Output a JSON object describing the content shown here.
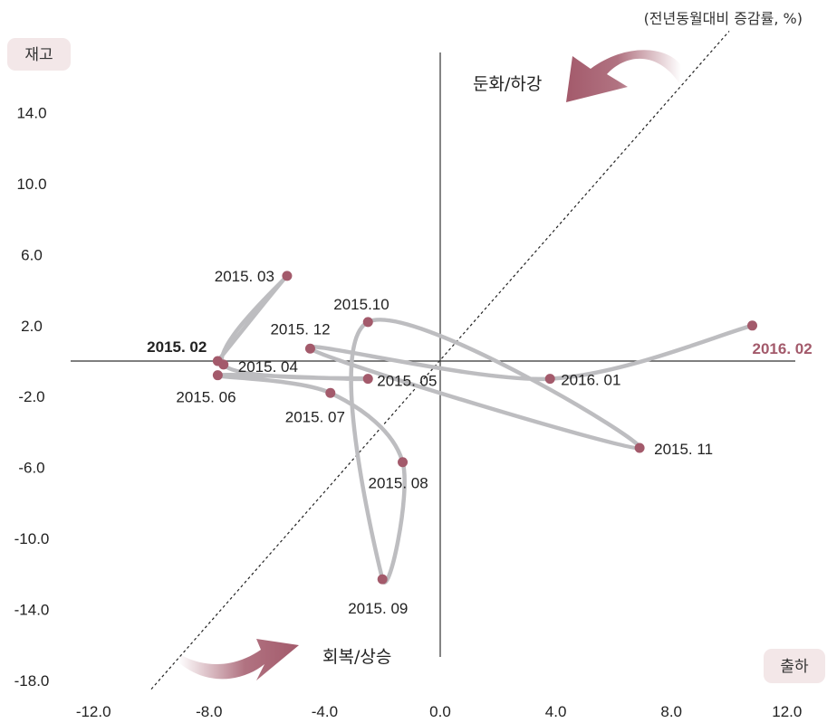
{
  "unit_label": "(전년동월대비 증감률, %)",
  "y_axis_badge": "재고",
  "x_axis_badge": "출하",
  "zone_top": "둔화/하강",
  "zone_bottom": "회복/상승",
  "colors": {
    "line": "#bdbdc0",
    "point": "#a35a6b",
    "accent": "#a35a6b",
    "badge": "#f3e7e8",
    "axis": "#333333"
  },
  "chart_data": {
    "type": "line",
    "x_ticks": [
      "-12.0",
      "-8.0",
      "-4.0",
      "0.0",
      "4.0",
      "8.0",
      "12.0"
    ],
    "y_ticks": [
      "14.0",
      "10.0",
      "6.0",
      "2.0",
      "-2.0",
      "-6.0",
      "-10.0",
      "-14.0",
      "-18.0"
    ],
    "xlim": [
      -12.5,
      12.5
    ],
    "ylim": [
      -19.5,
      17.0
    ],
    "diagonal": "dotted 45-degree reference line",
    "points": [
      {
        "label": "2015. 02",
        "x": -7.7,
        "y": 0.0,
        "style": "bold"
      },
      {
        "label": "2015. 03",
        "x": -5.3,
        "y": 4.8,
        "style": "normal"
      },
      {
        "label": "2015. 04",
        "x": -7.5,
        "y": -0.2,
        "style": "normal"
      },
      {
        "label": "2015. 05",
        "x": -2.5,
        "y": -1.0,
        "style": "normal"
      },
      {
        "label": "2015. 06",
        "x": -7.7,
        "y": -0.8,
        "style": "normal"
      },
      {
        "label": "2015. 07",
        "x": -3.8,
        "y": -1.8,
        "style": "normal"
      },
      {
        "label": "2015. 08",
        "x": -1.3,
        "y": -5.7,
        "style": "normal"
      },
      {
        "label": "2015. 09",
        "x": -2.0,
        "y": -12.3,
        "style": "normal"
      },
      {
        "label": "2015.10",
        "x": -2.5,
        "y": 2.2,
        "style": "normal"
      },
      {
        "label": "2015. 11",
        "x": 6.9,
        "y": -4.9,
        "style": "normal"
      },
      {
        "label": "2015. 12",
        "x": -4.5,
        "y": 0.7,
        "style": "normal"
      },
      {
        "label": "2016. 01",
        "x": 3.8,
        "y": -1.0,
        "style": "normal"
      },
      {
        "label": "2016. 02",
        "x": 10.8,
        "y": 2.0,
        "style": "accent"
      }
    ]
  }
}
